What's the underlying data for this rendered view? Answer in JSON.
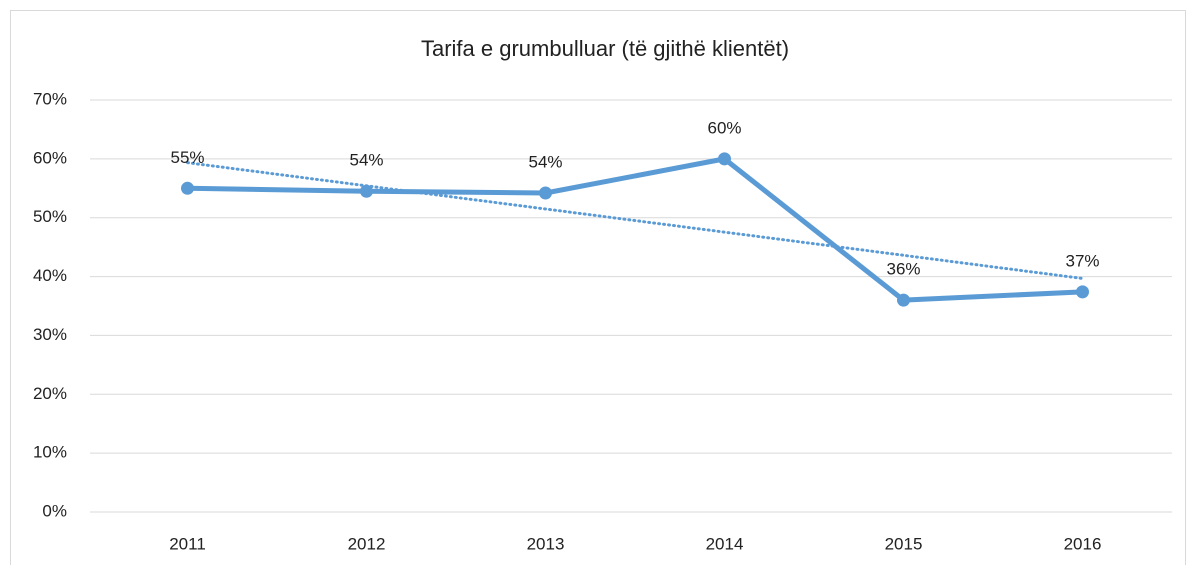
{
  "chart_data": {
    "type": "line",
    "title": "Tarifa e grumbulluar (të gjithë klientët)",
    "categories": [
      "2011",
      "2012",
      "2013",
      "2014",
      "2015",
      "2016"
    ],
    "series": [
      {
        "color": "#5b9bd5",
        "values": [
          55,
          54.5,
          54.2,
          60,
          36,
          37.4
        ],
        "value_labels": [
          "55%",
          "54%",
          "54%",
          "60%",
          "36%",
          "37%"
        ]
      }
    ],
    "ylim": [
      0,
      70
    ],
    "yticks": [
      {
        "value": 0,
        "label": "0%"
      },
      {
        "value": 10,
        "label": "10%"
      },
      {
        "value": 20,
        "label": "20%"
      },
      {
        "value": 30,
        "label": "30%"
      },
      {
        "value": 40,
        "label": "40%"
      },
      {
        "value": 50,
        "label": "50%"
      },
      {
        "value": 60,
        "label": "60%"
      },
      {
        "value": 70,
        "label": "70%"
      }
    ],
    "grid": true,
    "trendline": true
  }
}
